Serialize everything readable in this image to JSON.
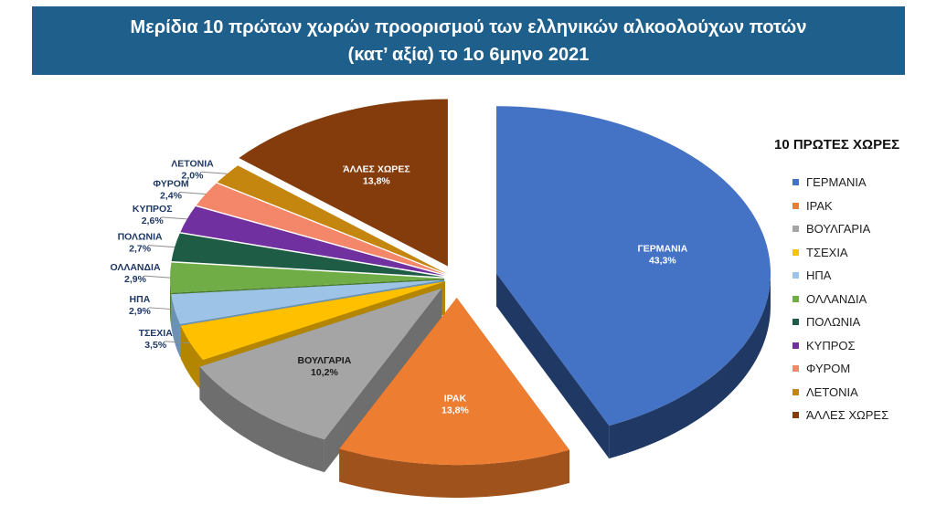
{
  "header": {
    "title_line1": "Μερίδια 10 πρώτων χωρών προορισμού των ελληνικών αλκοολούχων ποτών",
    "title_line2": "(κατ’ αξία) το 1ο 6μηνο 2021"
  },
  "legend": {
    "title": "10 ΠΡΩΤΕΣ ΧΩΡΕΣ",
    "placement": "right"
  },
  "chart_data": {
    "type": "pie",
    "title": "Μερίδια 10 πρώτων χωρών προορισμού των ελληνικών αλκοολούχων ποτών (κατ’ αξία) το 1ο 6μηνο 2021",
    "style": "3d-exploded",
    "slices": [
      {
        "label": "ΓΕΡΜΑΝΙΑ",
        "value": 43.3,
        "value_label": "43,3%",
        "color": "#4472c4",
        "side_color": "#1f3864",
        "label_color": "#ffffff"
      },
      {
        "label": "ΙΡΑΚ",
        "value": 13.8,
        "value_label": "13,8%",
        "color": "#ed7d31",
        "side_color": "#a0521c",
        "label_color": "#ffffff"
      },
      {
        "label": "ΒΟΥΛΓΑΡΙΑ",
        "value": 10.2,
        "value_label": "10,2%",
        "color": "#a5a5a5",
        "side_color": "#6e6e6e",
        "label_color": "#1a1a1a"
      },
      {
        "label": "ΤΣΕΧΙΑ",
        "value": 3.5,
        "value_label": "3,5%",
        "color": "#ffc000",
        "side_color": "#b48600",
        "label_color": "#1f3864"
      },
      {
        "label": "ΗΠΑ",
        "value": 2.9,
        "value_label": "2,9%",
        "color": "#9dc3e6",
        "side_color": "#6b92b5",
        "label_color": "#1f3864"
      },
      {
        "label": "ΟΛΛΑΝΔΙΑ",
        "value": 2.9,
        "value_label": "2,9%",
        "color": "#70ad47",
        "side_color": "#4a7a2d",
        "label_color": "#1f3864"
      },
      {
        "label": "ΠΟΛΩΝΙΑ",
        "value": 2.7,
        "value_label": "2,7%",
        "color": "#1e5c45",
        "side_color": "#10382a",
        "label_color": "#1f3864"
      },
      {
        "label": "ΚΥΠΡΟΣ",
        "value": 2.6,
        "value_label": "2,6%",
        "color": "#7030a0",
        "side_color": "#451c63",
        "label_color": "#1f3864"
      },
      {
        "label": "ΦΥΡΟΜ",
        "value": 2.4,
        "value_label": "2,4%",
        "color": "#f4866a",
        "side_color": "#b85f47",
        "label_color": "#1f3864"
      },
      {
        "label": "ΛΕΤΟΝΙΑ",
        "value": 2.0,
        "value_label": "2,0%",
        "color": "#c5860f",
        "side_color": "#87590a",
        "label_color": "#1f3864"
      },
      {
        "label": "ΆΛΛΕΣ ΧΩΡΕΣ",
        "value": 13.8,
        "value_label": "13,8%",
        "color": "#843c0c",
        "side_color": "#4f2206",
        "label_color": "#ffffff"
      }
    ]
  }
}
